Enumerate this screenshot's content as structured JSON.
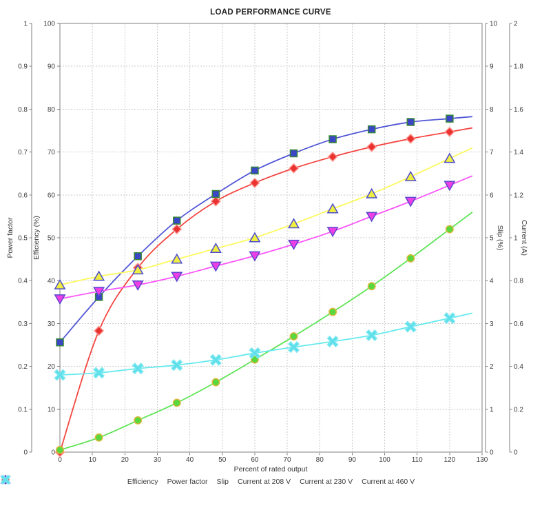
{
  "title": "LOAD PERFORMANCE CURVE",
  "axes": {
    "x": {
      "label": "Percent of rated output",
      "min": 0,
      "max": 130,
      "tick_labels": [
        "0",
        "10",
        "20",
        "30",
        "40",
        "50",
        "60",
        "70",
        "80",
        "90",
        "100",
        "110",
        "120",
        "130"
      ]
    },
    "power_factor": {
      "label": "Power factor",
      "min": 0,
      "max": 1,
      "tick_labels": [
        "0",
        "0.1",
        "0.2",
        "0.3",
        "0.4",
        "0.5",
        "0.6",
        "0.7",
        "0.8",
        "0.9",
        "1"
      ]
    },
    "efficiency": {
      "label": "Efficiency (%)",
      "min": 0,
      "max": 100,
      "tick_labels": [
        "0",
        "10",
        "20",
        "30",
        "40",
        "50",
        "60",
        "70",
        "80",
        "90",
        "100"
      ]
    },
    "slip": {
      "label": "Slip (%)",
      "min": 0,
      "max": 10,
      "tick_labels": [
        "0",
        "1",
        "2",
        "3",
        "4",
        "5",
        "6",
        "7",
        "8",
        "9",
        "10"
      ]
    },
    "current": {
      "label": "Current (A)",
      "min": 0,
      "max": 2,
      "tick_labels": [
        "0",
        "0.2",
        "0.4",
        "0.6",
        "0.8",
        "1",
        "1.2",
        "1.4",
        "1.6",
        "1.8",
        "2"
      ]
    }
  },
  "chart_data": {
    "type": "line",
    "title": "LOAD PERFORMANCE CURVE",
    "xlabel": "Percent of rated output",
    "x": [
      0,
      12,
      24,
      36,
      48,
      60,
      72,
      84,
      96,
      108,
      120
    ],
    "grid": true,
    "legend_position": "bottom",
    "series": [
      {
        "name": "Efficiency",
        "axis": "efficiency",
        "marker": "diamond",
        "line_color": "#f4453f",
        "marker_fill": "#ea3330",
        "marker_stroke": "#ff9a94",
        "values": [
          0,
          28.3,
          43,
          52,
          58.5,
          62.8,
          66.2,
          68.9,
          71.2,
          73.1,
          74.7
        ]
      },
      {
        "name": "Power factor",
        "axis": "power_factor",
        "marker": "square",
        "line_color": "#5156d6",
        "marker_fill": "#3b46c6",
        "marker_stroke": "#378834",
        "values": [
          0.256,
          0.362,
          0.457,
          0.54,
          0.602,
          0.657,
          0.697,
          0.73,
          0.753,
          0.77,
          0.778
        ]
      },
      {
        "name": "Slip",
        "axis": "slip",
        "marker": "circle",
        "line_color": "#5ee455",
        "marker_fill": "#58d83e",
        "marker_stroke": "#dcb63b",
        "values": [
          0.05,
          0.34,
          0.74,
          1.15,
          1.63,
          2.16,
          2.7,
          3.27,
          3.87,
          4.52,
          5.2
        ]
      },
      {
        "name": "Current at 208 V",
        "axis": "current",
        "marker": "triangle-up",
        "line_color": "#fcfa5d",
        "marker_fill": "#f0ee40",
        "marker_stroke": "#4b4bd0",
        "values": [
          0.78,
          0.82,
          0.85,
          0.9,
          0.95,
          1.0,
          1.065,
          1.135,
          1.205,
          1.285,
          1.37
        ]
      },
      {
        "name": "Current at 230 V",
        "axis": "current",
        "marker": "triangle-down",
        "line_color": "#fa55fa",
        "marker_fill": "#ee3fe6",
        "marker_stroke": "#5a47cf",
        "values": [
          0.715,
          0.75,
          0.78,
          0.82,
          0.868,
          0.916,
          0.97,
          1.03,
          1.1,
          1.17,
          1.245
        ]
      },
      {
        "name": "Current at 460 V",
        "axis": "current",
        "marker": "x-cross",
        "line_color": "#64e9ee",
        "marker_fill": "#5bdeea",
        "marker_stroke": "#7ce8f0",
        "values": [
          0.36,
          0.37,
          0.39,
          0.406,
          0.43,
          0.462,
          0.49,
          0.516,
          0.545,
          0.585,
          0.625
        ]
      }
    ]
  }
}
